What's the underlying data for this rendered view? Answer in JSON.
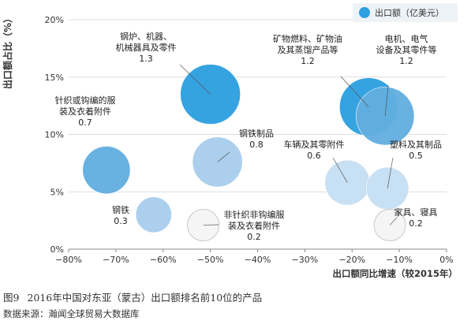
{
  "figure": {
    "number": "图9",
    "caption": "2016年中国对东亚（蒙古）出口额排名前10位的产品",
    "source": "数据来源：瀚闻全球贸易大数据库"
  },
  "chart_data": {
    "type": "scatter",
    "xlabel": "出口额同比增速（较2015年）",
    "ylabel": "出口额占比（%）",
    "xlim": [
      -80,
      0
    ],
    "ylim": [
      0,
      20
    ],
    "x_ticks": [
      "−80%",
      "−70%",
      "−60%",
      "−50%",
      "−40%",
      "−30%",
      "−20%",
      "−10%",
      "0%"
    ],
    "y_ticks": [
      "0%",
      "5%",
      "10%",
      "15%",
      "20%"
    ],
    "legend": "出口额（亿美元）",
    "legend_position": "top-right",
    "points": [
      {
        "name": "钢炉、机器、机械器具及零件",
        "value": 1.3,
        "x": -50.0,
        "y": 13.5,
        "style": "dark"
      },
      {
        "name": "矿物燃料、矿物油及其蒸馏产品等",
        "value": 1.2,
        "x": -16.5,
        "y": 12.4,
        "style": "dark"
      },
      {
        "name": "电机、电气设备及其零件等",
        "value": 1.2,
        "x": -13.0,
        "y": 11.6,
        "style": "mid"
      },
      {
        "name": "针织或钩编的服装及衣着附件",
        "value": 0.7,
        "x": -72.0,
        "y": 6.9,
        "style": "mid"
      },
      {
        "name": "钢铁制品",
        "value": 0.8,
        "x": -48.5,
        "y": 7.6,
        "style": "light"
      },
      {
        "name": "车辆及其零附件",
        "value": 0.6,
        "x": -21.0,
        "y": 5.8,
        "style": "pale"
      },
      {
        "name": "塑料及其制品",
        "value": 0.5,
        "x": -12.5,
        "y": 5.3,
        "style": "pale"
      },
      {
        "name": "钢铁",
        "value": 0.3,
        "x": -62.0,
        "y": 3.0,
        "style": "light"
      },
      {
        "name": "非针织非钩编服装及衣着附件",
        "value": 0.2,
        "x": -51.5,
        "y": 2.1,
        "style": "outline"
      },
      {
        "name": "家具、寝具",
        "value": 0.2,
        "x": -12.0,
        "y": 2.1,
        "style": "outline"
      }
    ]
  },
  "colors": {
    "dark": "#2e9fe0",
    "mid": "#62aedf",
    "light": "#a9cdec",
    "pale": "#c6dff2",
    "outline": "#f5f5f5",
    "outline_stroke": "#c8c8c8",
    "legend_dot": "#2e9fe0",
    "legend_bg": "#eef3f8"
  }
}
